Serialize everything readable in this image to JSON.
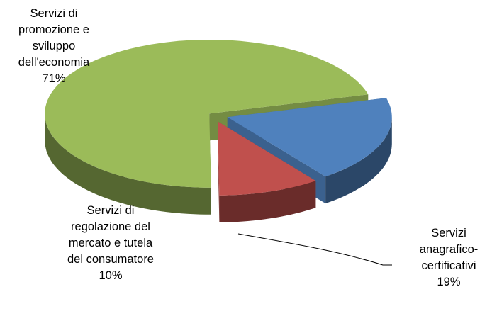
{
  "chart_data": {
    "type": "pie",
    "categories": [
      "Servizi anagrafico-certificativi",
      "Servizi di regolazione del mercato e tutela del consumatore",
      "Servizi di promozione e sviluppo dell'economia"
    ],
    "values": [
      19,
      10,
      71
    ],
    "value_labels": [
      "19%",
      "10%",
      "71%"
    ],
    "colors": [
      "#4f81bd",
      "#c0504d",
      "#9bbb59"
    ]
  }
}
